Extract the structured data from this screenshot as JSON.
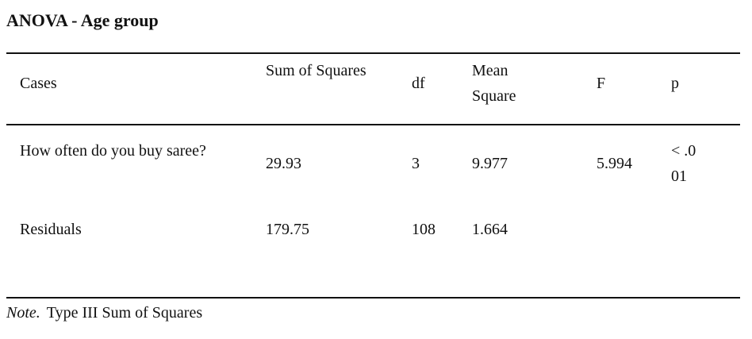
{
  "title": "ANOVA - Age group",
  "columns": [
    "Cases",
    "Sum of Squares",
    "df",
    "Mean Square",
    "F",
    "p"
  ],
  "rows": [
    {
      "case": "How often do you buy saree?",
      "sum_of_squares": "29.93",
      "df": "3",
      "mean_square": "9.977",
      "F": "5.994",
      "p": "< .001"
    },
    {
      "case": "Residuals",
      "sum_of_squares": "179.75",
      "df": "108",
      "mean_square": "1.664",
      "F": "",
      "p": ""
    }
  ],
  "note": {
    "label": "Note.",
    "text": "Type III Sum of Squares"
  }
}
